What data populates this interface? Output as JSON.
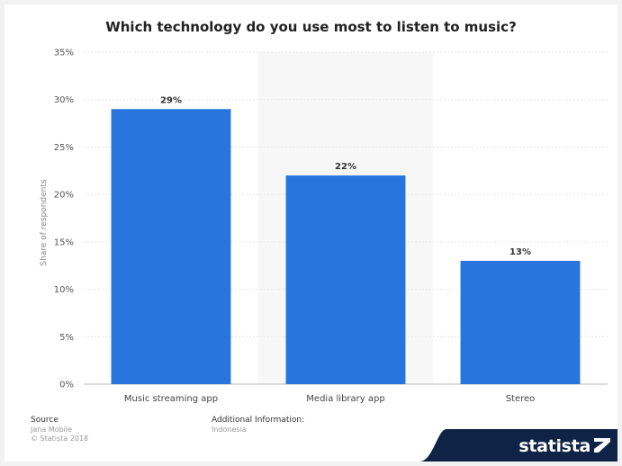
{
  "chart_data": {
    "type": "bar",
    "title": "Which technology do you use most to listen to music?",
    "categories": [
      "Music streaming app",
      "Media library app",
      "Stereo"
    ],
    "values": [
      29,
      22,
      13
    ],
    "data_labels": [
      "29%",
      "22%",
      "13%"
    ],
    "ylabel": "Share of respondents",
    "ylim": [
      0,
      35
    ],
    "yticks": [
      "0%",
      "5%",
      "10%",
      "15%",
      "20%",
      "25%",
      "30%",
      "35%"
    ],
    "grid": true,
    "bar_color": "#2876dd"
  },
  "footer": {
    "source_title": "Source",
    "source_lines": [
      "Jana Mobile",
      "© Statista 2018"
    ],
    "additional_title": "Additional Information:",
    "additional_lines": [
      "Indonesia"
    ]
  },
  "brand": {
    "name": "statista",
    "color": "#0f2346"
  }
}
